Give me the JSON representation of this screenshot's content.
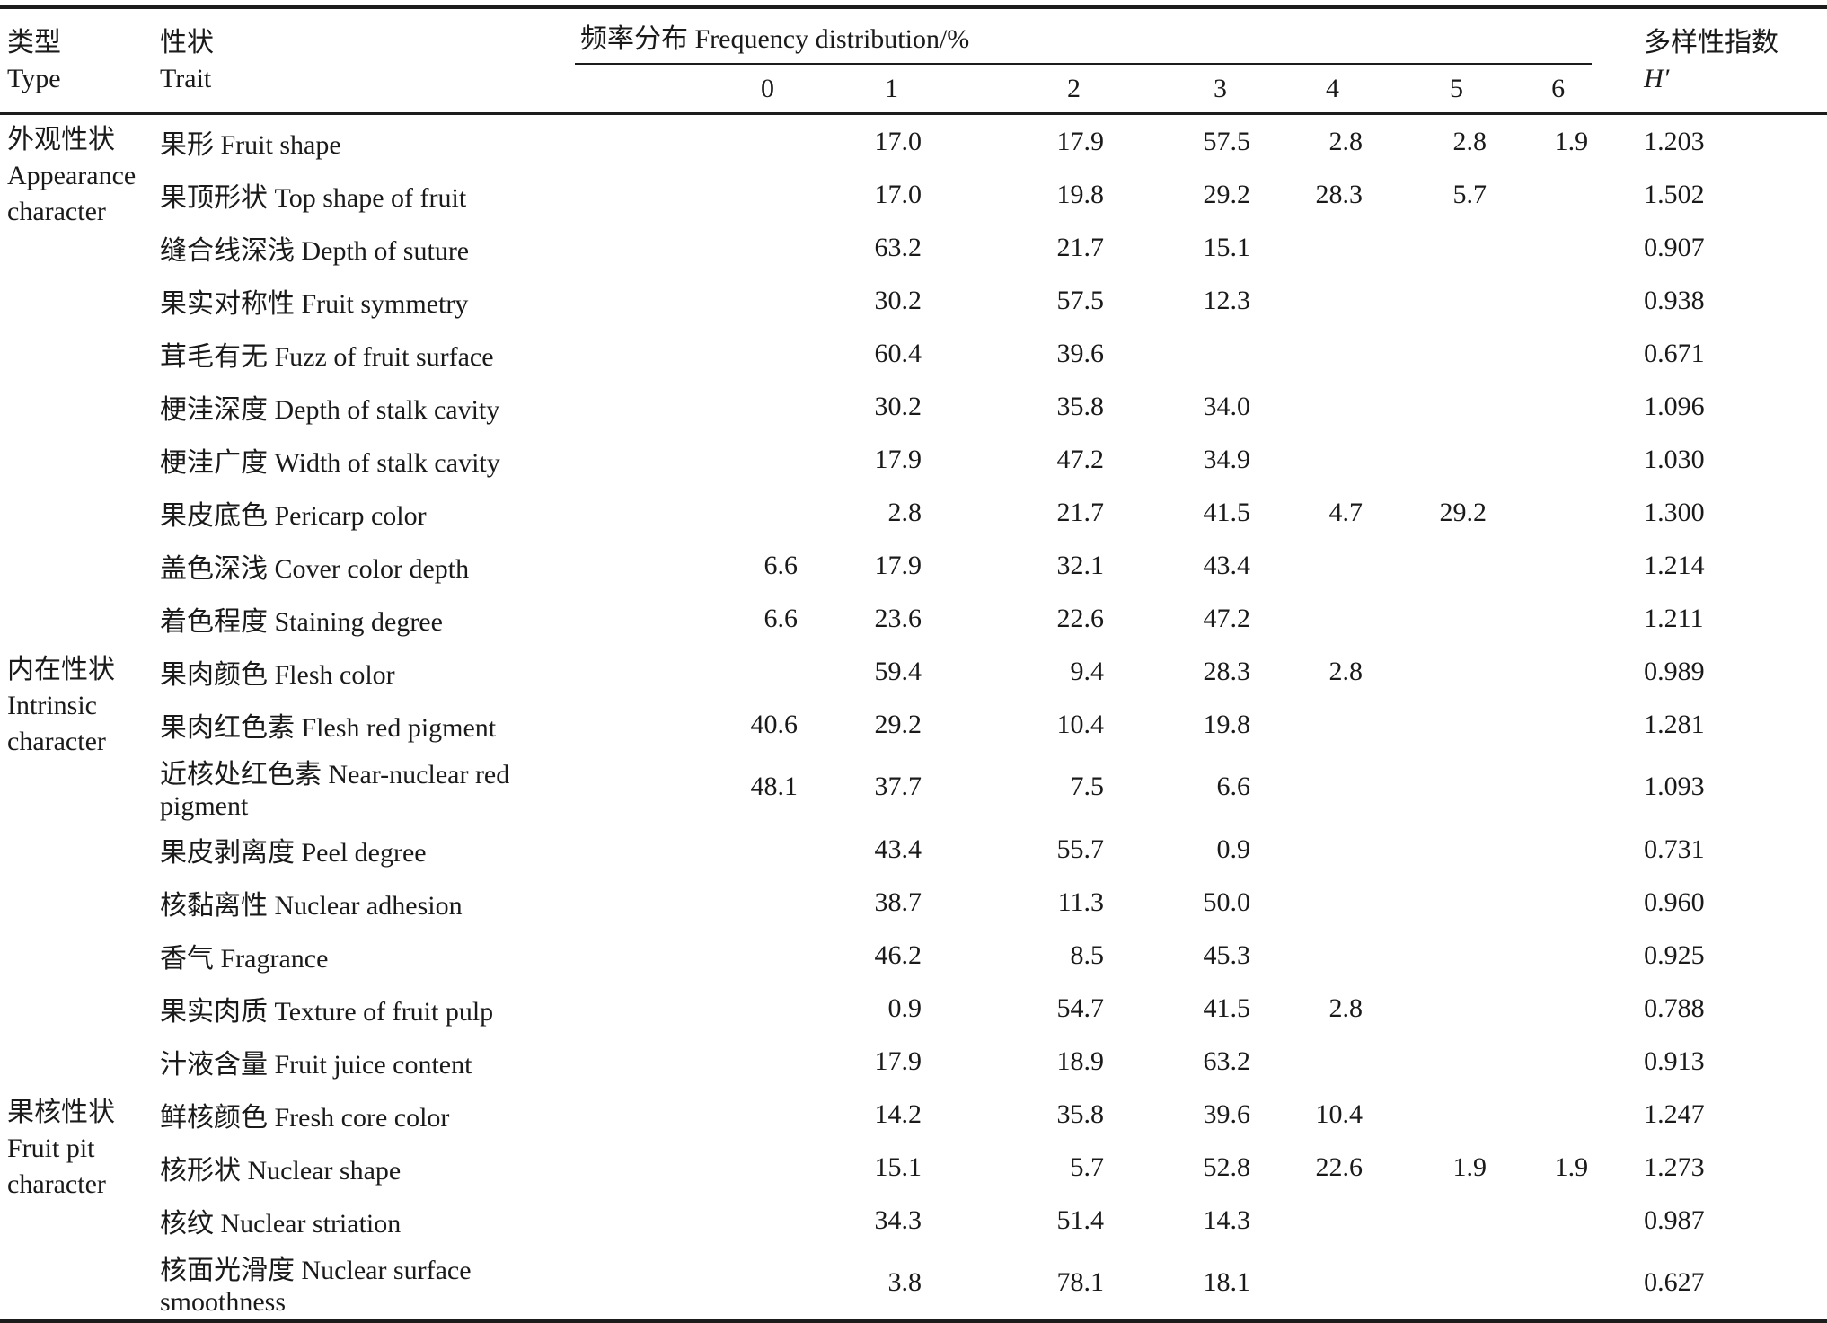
{
  "table": {
    "header": {
      "type_zh": "类型",
      "type_en": "Type",
      "trait_zh": "性状",
      "trait_en": "Trait",
      "freq_group_label": "频率分布 Frequency distribution/%",
      "freq_levels": [
        "0",
        "1",
        "2",
        "3",
        "4",
        "5",
        "6"
      ],
      "index_zh": "多样性指数",
      "index_symbol": "H′"
    },
    "groups": [
      {
        "type_zh": "外观性状",
        "type_en": "Appearance character",
        "rows": [
          {
            "trait": "果形 Fruit shape",
            "freq": [
              "",
              "17.0",
              "17.9",
              "57.5",
              "2.8",
              "2.8",
              "1.9"
            ],
            "h": "1.203"
          },
          {
            "trait": "果顶形状 Top shape of fruit",
            "freq": [
              "",
              "17.0",
              "19.8",
              "29.2",
              "28.3",
              "5.7",
              ""
            ],
            "h": "1.502"
          },
          {
            "trait": "缝合线深浅 Depth of suture",
            "freq": [
              "",
              "63.2",
              "21.7",
              "15.1",
              "",
              "",
              ""
            ],
            "h": "0.907"
          },
          {
            "trait": "果实对称性 Fruit symmetry",
            "freq": [
              "",
              "30.2",
              "57.5",
              "12.3",
              "",
              "",
              ""
            ],
            "h": "0.938"
          },
          {
            "trait": "茸毛有无 Fuzz of fruit surface",
            "freq": [
              "",
              "60.4",
              "39.6",
              "",
              "",
              "",
              ""
            ],
            "h": "0.671"
          },
          {
            "trait": "梗洼深度 Depth of stalk cavity",
            "freq": [
              "",
              "30.2",
              "35.8",
              "34.0",
              "",
              "",
              ""
            ],
            "h": "1.096"
          },
          {
            "trait": "梗洼广度 Width of stalk cavity",
            "freq": [
              "",
              "17.9",
              "47.2",
              "34.9",
              "",
              "",
              ""
            ],
            "h": "1.030"
          },
          {
            "trait": "果皮底色 Pericarp color",
            "freq": [
              "",
              "2.8",
              "21.7",
              "41.5",
              "4.7",
              "29.2",
              ""
            ],
            "h": "1.300"
          },
          {
            "trait": "盖色深浅 Cover color depth",
            "freq": [
              "6.6",
              "17.9",
              "32.1",
              "43.4",
              "",
              "",
              ""
            ],
            "h": "1.214"
          },
          {
            "trait": "着色程度 Staining degree",
            "freq": [
              "6.6",
              "23.6",
              "22.6",
              "47.2",
              "",
              "",
              ""
            ],
            "h": "1.211"
          }
        ]
      },
      {
        "type_zh": "内在性状",
        "type_en": "Intrinsic character",
        "rows": [
          {
            "trait": "果肉颜色 Flesh color",
            "freq": [
              "",
              "59.4",
              "9.4",
              "28.3",
              "2.8",
              "",
              ""
            ],
            "h": "0.989"
          },
          {
            "trait": "果肉红色素 Flesh red pigment",
            "freq": [
              "40.6",
              "29.2",
              "10.4",
              "19.8",
              "",
              "",
              ""
            ],
            "h": "1.281"
          },
          {
            "trait": "近核处红色素 Near-nuclear red pigment",
            "freq": [
              "48.1",
              "37.7",
              "7.5",
              "6.6",
              "",
              "",
              ""
            ],
            "h": "1.093"
          },
          {
            "trait": "果皮剥离度 Peel degree",
            "freq": [
              "",
              "43.4",
              "55.7",
              "0.9",
              "",
              "",
              ""
            ],
            "h": "0.731"
          },
          {
            "trait": "核黏离性 Nuclear adhesion",
            "freq": [
              "",
              "38.7",
              "11.3",
              "50.0",
              "",
              "",
              ""
            ],
            "h": "0.960"
          },
          {
            "trait": "香气 Fragrance",
            "freq": [
              "",
              "46.2",
              "8.5",
              "45.3",
              "",
              "",
              ""
            ],
            "h": "0.925"
          },
          {
            "trait": "果实肉质 Texture of fruit pulp",
            "freq": [
              "",
              "0.9",
              "54.7",
              "41.5",
              "2.8",
              "",
              ""
            ],
            "h": "0.788"
          },
          {
            "trait": "汁液含量 Fruit juice content",
            "freq": [
              "",
              "17.9",
              "18.9",
              "63.2",
              "",
              "",
              ""
            ],
            "h": "0.913"
          }
        ]
      },
      {
        "type_zh": "果核性状",
        "type_en": "Fruit pit character",
        "rows": [
          {
            "trait": "鲜核颜色 Fresh core color",
            "freq": [
              "",
              "14.2",
              "35.8",
              "39.6",
              "10.4",
              "",
              ""
            ],
            "h": "1.247"
          },
          {
            "trait": "核形状 Nuclear shape",
            "freq": [
              "",
              "15.1",
              "5.7",
              "52.8",
              "22.6",
              "1.9",
              "1.9"
            ],
            "h": "1.273"
          },
          {
            "trait": "核纹 Nuclear striation",
            "freq": [
              "",
              "34.3",
              "51.4",
              "14.3",
              "",
              "",
              ""
            ],
            "h": "0.987"
          },
          {
            "trait": "核面光滑度 Nuclear surface smoothness",
            "freq": [
              "",
              "3.8",
              "78.1",
              "18.1",
              "",
              "",
              ""
            ],
            "h": "0.627"
          }
        ]
      }
    ]
  }
}
